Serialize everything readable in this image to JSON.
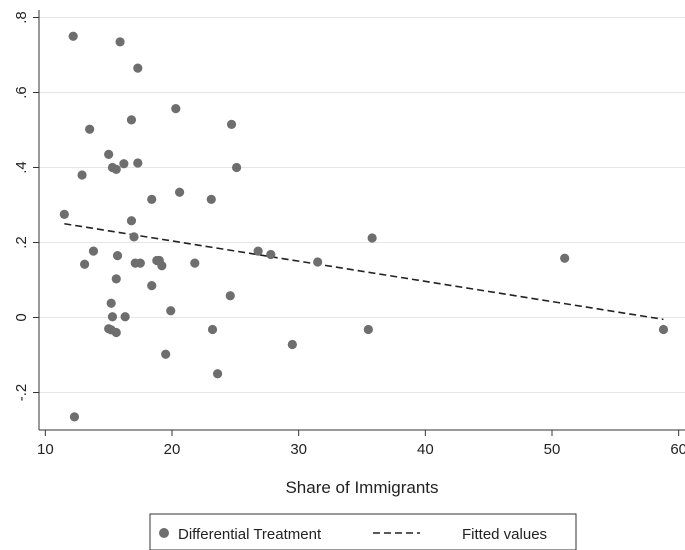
{
  "chart_data": {
    "type": "scatter",
    "title": "",
    "xlabel": "Share of Immigrants",
    "ylabel": "",
    "xlim": [
      9.5,
      60.5
    ],
    "ylim": [
      -0.3,
      0.82
    ],
    "x_ticks": [
      10,
      20,
      30,
      40,
      50,
      60
    ],
    "y_ticks": [
      -0.2,
      0,
      0.2,
      0.4,
      0.6,
      0.8
    ],
    "y_tick_labels": [
      "-.2",
      "0",
      ".2",
      ".4",
      ".6",
      ".8"
    ],
    "grid": "horizontal",
    "legend_position": "bottom",
    "colors": {
      "points": "#6e6e6e",
      "fit_line": "#222222",
      "grid": "#e6e6e6"
    },
    "series": [
      {
        "name": "Differential Treatment",
        "type": "scatter",
        "points": [
          [
            12.2,
            0.75
          ],
          [
            15.9,
            0.735
          ],
          [
            17.3,
            0.665
          ],
          [
            20.3,
            0.557
          ],
          [
            16.8,
            0.527
          ],
          [
            24.7,
            0.515
          ],
          [
            13.5,
            0.502
          ],
          [
            15.0,
            0.435
          ],
          [
            16.2,
            0.41
          ],
          [
            17.3,
            0.412
          ],
          [
            15.3,
            0.4
          ],
          [
            15.6,
            0.395
          ],
          [
            25.1,
            0.4
          ],
          [
            12.9,
            0.38
          ],
          [
            20.6,
            0.334
          ],
          [
            18.4,
            0.315
          ],
          [
            23.1,
            0.315
          ],
          [
            11.5,
            0.275
          ],
          [
            16.8,
            0.258
          ],
          [
            17.0,
            0.215
          ],
          [
            35.8,
            0.212
          ],
          [
            13.8,
            0.177
          ],
          [
            26.8,
            0.177
          ],
          [
            27.8,
            0.168
          ],
          [
            15.7,
            0.165
          ],
          [
            18.8,
            0.152
          ],
          [
            19.0,
            0.152
          ],
          [
            13.1,
            0.142
          ],
          [
            17.1,
            0.145
          ],
          [
            17.5,
            0.145
          ],
          [
            19.2,
            0.138
          ],
          [
            21.8,
            0.145
          ],
          [
            31.5,
            0.148
          ],
          [
            51.0,
            0.158
          ],
          [
            15.6,
            0.103
          ],
          [
            18.4,
            0.085
          ],
          [
            24.6,
            0.058
          ],
          [
            15.2,
            0.038
          ],
          [
            19.9,
            0.018
          ],
          [
            15.3,
            0.002
          ],
          [
            16.3,
            0.002
          ],
          [
            15.0,
            -0.03
          ],
          [
            15.2,
            -0.033
          ],
          [
            15.6,
            -0.04
          ],
          [
            23.2,
            -0.032
          ],
          [
            35.5,
            -0.032
          ],
          [
            58.8,
            -0.032
          ],
          [
            29.5,
            -0.072
          ],
          [
            19.5,
            -0.098
          ],
          [
            23.6,
            -0.15
          ],
          [
            12.3,
            -0.265
          ]
        ]
      },
      {
        "name": "Fitted values",
        "type": "line",
        "style": "dashed",
        "points": [
          [
            11.5,
            0.25
          ],
          [
            58.8,
            -0.005
          ]
        ]
      }
    ]
  }
}
